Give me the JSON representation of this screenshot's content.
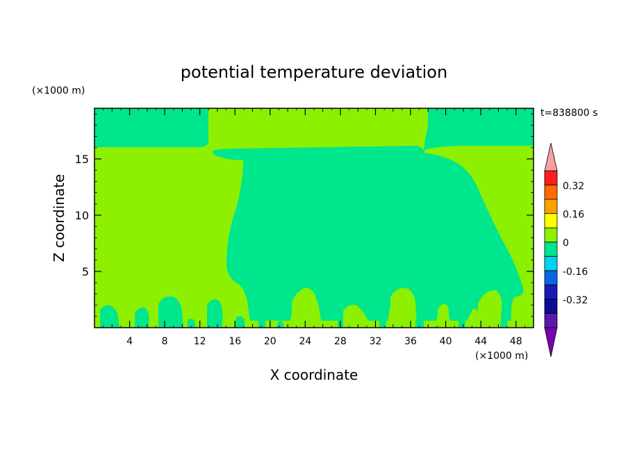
{
  "chart_data": {
    "type": "heatmap",
    "title": "potential temperature deviation",
    "xlabel": "X coordinate",
    "ylabel": "Z coordinate",
    "x_unit": "(×1000 m)",
    "y_unit": "(×1000 m)",
    "time_label": "t=838800 s",
    "xlim": [
      0,
      50
    ],
    "ylim": [
      0,
      19.5
    ],
    "xticks": [
      4,
      8,
      12,
      16,
      20,
      24,
      28,
      32,
      36,
      40,
      44,
      48
    ],
    "yticks": [
      5,
      10,
      15
    ],
    "colorbar": {
      "levels": [
        -0.4,
        -0.32,
        -0.24,
        -0.16,
        -0.08,
        0,
        0.08,
        0.16,
        0.24,
        0.32,
        0.4
      ],
      "tick_labels": [
        "-0.32",
        "-0.16",
        "0",
        "0.16",
        "0.32"
      ],
      "tick_values": [
        -0.32,
        -0.16,
        0,
        0.16,
        0.32
      ],
      "colors": [
        "#5a1aa8",
        "#0b0b96",
        "#1a1ab4",
        "#0a64e6",
        "#00d2f0",
        "#00e68c",
        "#8cf000",
        "#ffff00",
        "#ffa000",
        "#ff6a00",
        "#ff1e1e"
      ],
      "under_color": "#7a00b4",
      "over_color": "#f4a0a0"
    },
    "regions": [
      {
        "name": "background",
        "value_range": "0 to 0.08",
        "color": "#8cf000"
      },
      {
        "name": "central-region",
        "value_range": "-0.08 to 0",
        "color": "#00e68c"
      },
      {
        "name": "upper-left-region",
        "value_range": "-0.08 to 0",
        "color": "#00e68c"
      },
      {
        "name": "upper-right-region",
        "value_range": "-0.08 to 0",
        "color": "#00e68c"
      }
    ]
  }
}
